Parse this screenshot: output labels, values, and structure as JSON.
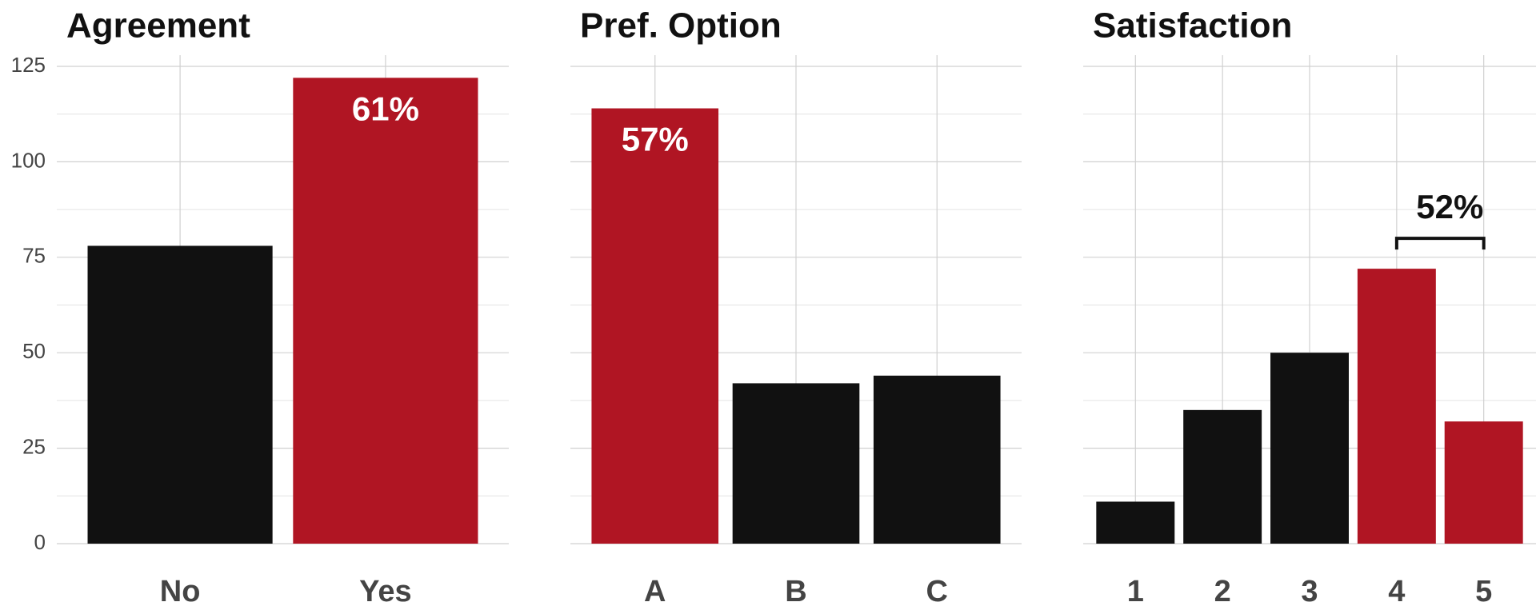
{
  "chart_data": [
    {
      "type": "bar",
      "title": "Agreement",
      "categories": [
        "No",
        "Yes"
      ],
      "values": [
        78,
        122
      ],
      "colors": [
        "#111111",
        "#b01523"
      ],
      "annotation": "61%",
      "ylim": [
        0,
        125
      ],
      "yticks": [
        0,
        25,
        50,
        75,
        100,
        125
      ],
      "grid": true
    },
    {
      "type": "bar",
      "title": "Pref. Option",
      "categories": [
        "A",
        "B",
        "C"
      ],
      "values": [
        114,
        42,
        44
      ],
      "colors": [
        "#b01523",
        "#111111",
        "#111111"
      ],
      "annotation": "57%",
      "ylim": [
        0,
        125
      ],
      "yticks": [
        0,
        25,
        50,
        75,
        100,
        125
      ],
      "grid": true
    },
    {
      "type": "bar",
      "title": "Satisfaction",
      "categories": [
        "1",
        "2",
        "3",
        "4",
        "5"
      ],
      "values": [
        11,
        35,
        50,
        72,
        32
      ],
      "colors": [
        "#111111",
        "#111111",
        "#111111",
        "#b01523",
        "#b01523"
      ],
      "annotation": "52%",
      "ylim": [
        0,
        125
      ],
      "yticks": [
        0,
        25,
        50,
        75,
        100,
        125
      ],
      "grid": true
    }
  ]
}
